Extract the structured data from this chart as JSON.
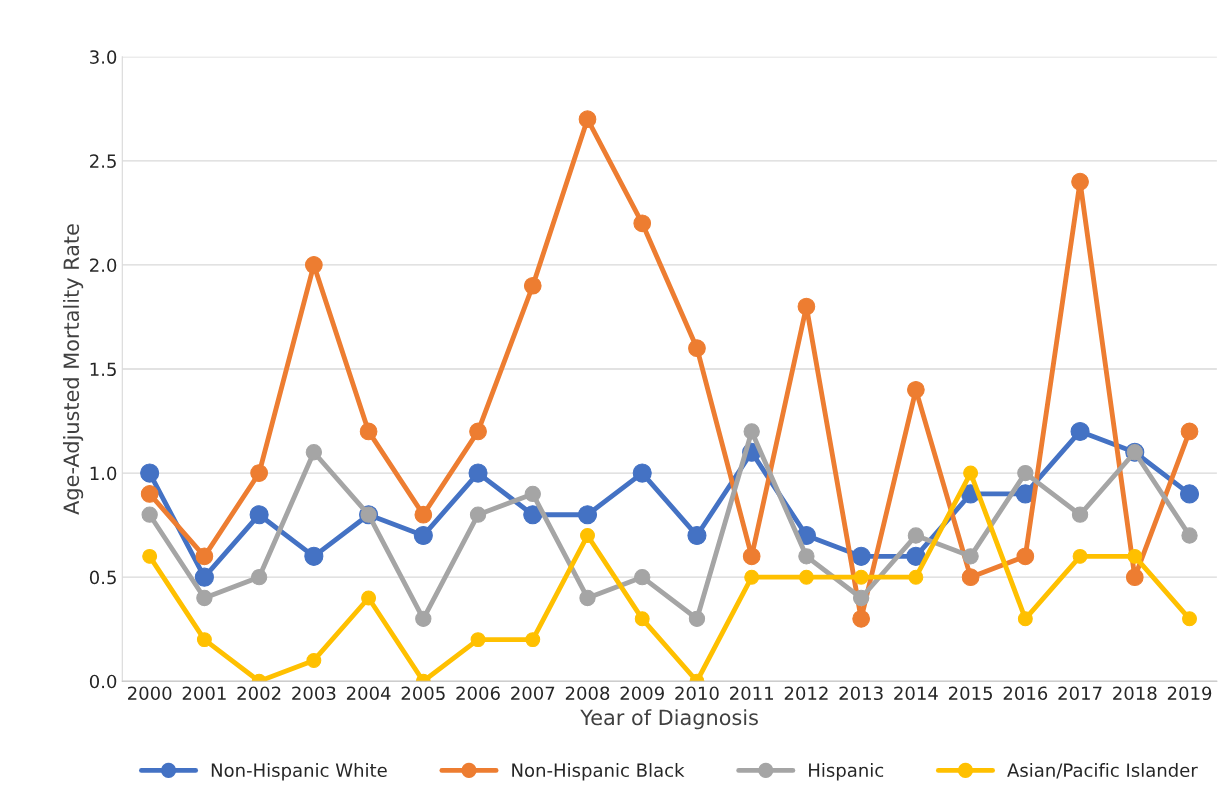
{
  "chart_data": {
    "type": "line",
    "xlabel": "Year of Diagnosis",
    "ylabel": "Age-Adjusted Mortality Rate",
    "categories": [
      "2000",
      "2001",
      "2002",
      "2003",
      "2004",
      "2005",
      "2006",
      "2007",
      "2008",
      "2009",
      "2010",
      "2011",
      "2012",
      "2013",
      "2014",
      "2015",
      "2016",
      "2017",
      "2018",
      "2019"
    ],
    "series": [
      {
        "name": "Non-Hispanic White",
        "color": "#4472c4",
        "values": [
          1.0,
          0.5,
          0.8,
          0.6,
          0.8,
          0.7,
          1.0,
          0.8,
          0.8,
          1.0,
          0.7,
          1.1,
          0.7,
          0.6,
          0.6,
          0.9,
          0.9,
          1.2,
          1.1,
          0.9
        ]
      },
      {
        "name": "Non-Hispanic Black",
        "color": "#ed7d31",
        "values": [
          0.9,
          0.6,
          1.0,
          2.0,
          1.2,
          0.8,
          1.2,
          1.9,
          2.7,
          2.2,
          1.6,
          0.6,
          1.8,
          0.3,
          1.4,
          0.5,
          0.6,
          2.4,
          0.5,
          1.2
        ]
      },
      {
        "name": "Hispanic",
        "color": "#a5a5a5",
        "values": [
          0.8,
          0.4,
          0.5,
          1.1,
          0.8,
          0.3,
          0.8,
          0.9,
          0.4,
          0.5,
          0.3,
          1.2,
          0.6,
          0.4,
          0.7,
          0.6,
          1.0,
          0.8,
          1.1,
          0.7
        ]
      },
      {
        "name": "Asian/Pacific Islander",
        "color": "#ffc000",
        "values": [
          0.6,
          0.2,
          0.0,
          0.1,
          0.4,
          0.0,
          0.2,
          0.2,
          0.7,
          0.3,
          0.0,
          0.5,
          0.5,
          0.5,
          0.5,
          1.0,
          0.3,
          0.6,
          0.6,
          0.3
        ]
      }
    ],
    "ylim": [
      0,
      3.0
    ],
    "yticks": [
      {
        "value": 0,
        "label": "0.0"
      },
      {
        "value": 0.5,
        "label": "0.5"
      },
      {
        "value": 1.0,
        "label": "1.0"
      },
      {
        "value": 1.5,
        "label": "1.5"
      },
      {
        "value": 2.0,
        "label": "2.0"
      },
      {
        "value": 2.5,
        "label": "2.5"
      },
      {
        "value": 3.0,
        "label": "3.0"
      }
    ],
    "grid": "y",
    "legend": "bottom",
    "marker": "circle",
    "line_style": "solid"
  }
}
